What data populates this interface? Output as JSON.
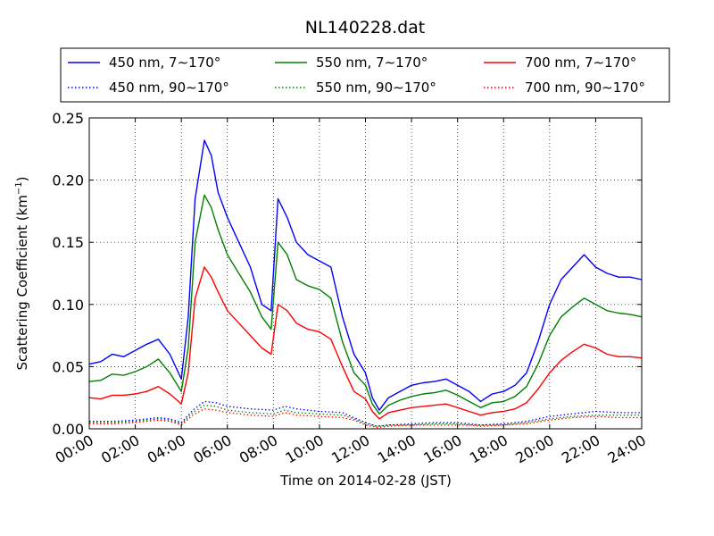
{
  "chart_data": {
    "type": "line",
    "title": "NL140228.dat",
    "xlabel": "Time on 2014-02-28 (JST)",
    "ylabel": "Scattering Coefficient (km",
    "ylabel_sup": "−1",
    "ylabel_close": ")",
    "xlim": [
      0,
      24
    ],
    "ylim": [
      0,
      0.25
    ],
    "grid": true,
    "legend_position": "top (above plot), 3 columns",
    "x_ticks": [
      0,
      2,
      4,
      6,
      8,
      10,
      12,
      14,
      16,
      18,
      20,
      22,
      24
    ],
    "x_tick_labels": [
      "00:00",
      "02:00",
      "04:00",
      "06:00",
      "08:00",
      "10:00",
      "12:00",
      "14:00",
      "16:00",
      "18:00",
      "20:00",
      "22:00",
      "24:00"
    ],
    "y_ticks": [
      0,
      0.05,
      0.1,
      0.15,
      0.2,
      0.25
    ],
    "y_tick_labels": [
      "0.00",
      "0.05",
      "0.10",
      "0.15",
      "0.20",
      "0.25"
    ],
    "series": [
      {
        "name": "450 nm, 7∼170°",
        "color": "#0000ff",
        "style": "solid",
        "x": [
          0,
          0.5,
          1,
          1.5,
          2,
          2.5,
          3,
          3.5,
          4,
          4.3,
          4.6,
          5,
          5.3,
          5.6,
          6,
          6.5,
          7,
          7.5,
          7.9,
          8.2,
          8.6,
          9,
          9.5,
          10,
          10.5,
          11,
          11.5,
          12,
          12.3,
          12.6,
          13,
          13.5,
          14,
          14.5,
          15,
          15.5,
          16,
          16.5,
          17,
          17.5,
          18,
          18.5,
          19,
          19.5,
          20,
          20.5,
          21,
          21.5,
          22,
          22.5,
          23,
          23.5,
          24
        ],
        "y": [
          0.052,
          0.054,
          0.06,
          0.058,
          0.063,
          0.068,
          0.072,
          0.06,
          0.04,
          0.09,
          0.185,
          0.232,
          0.22,
          0.19,
          0.17,
          0.15,
          0.13,
          0.1,
          0.095,
          0.185,
          0.17,
          0.15,
          0.14,
          0.135,
          0.13,
          0.09,
          0.06,
          0.045,
          0.025,
          0.015,
          0.025,
          0.03,
          0.035,
          0.037,
          0.038,
          0.04,
          0.035,
          0.03,
          0.022,
          0.028,
          0.03,
          0.035,
          0.045,
          0.07,
          0.1,
          0.12,
          0.13,
          0.14,
          0.13,
          0.125,
          0.122,
          0.122,
          0.12
        ]
      },
      {
        "name": "550 nm, 7∼170°",
        "color": "#008000",
        "style": "solid",
        "x": [
          0,
          0.5,
          1,
          1.5,
          2,
          2.5,
          3,
          3.5,
          4,
          4.3,
          4.6,
          5,
          5.3,
          5.6,
          6,
          6.5,
          7,
          7.5,
          7.9,
          8.2,
          8.6,
          9,
          9.5,
          10,
          10.5,
          11,
          11.5,
          12,
          12.3,
          12.6,
          13,
          13.5,
          14,
          14.5,
          15,
          15.5,
          16,
          16.5,
          17,
          17.5,
          18,
          18.5,
          19,
          19.5,
          20,
          20.5,
          21,
          21.5,
          22,
          22.5,
          23,
          23.5,
          24
        ],
        "y": [
          0.038,
          0.039,
          0.044,
          0.043,
          0.046,
          0.05,
          0.056,
          0.045,
          0.03,
          0.065,
          0.15,
          0.188,
          0.178,
          0.16,
          0.14,
          0.125,
          0.11,
          0.09,
          0.08,
          0.15,
          0.14,
          0.12,
          0.115,
          0.112,
          0.105,
          0.07,
          0.045,
          0.035,
          0.02,
          0.012,
          0.019,
          0.023,
          0.026,
          0.028,
          0.029,
          0.031,
          0.027,
          0.022,
          0.017,
          0.021,
          0.022,
          0.026,
          0.034,
          0.052,
          0.075,
          0.09,
          0.098,
          0.105,
          0.1,
          0.095,
          0.093,
          0.092,
          0.09
        ]
      },
      {
        "name": "700 nm, 7∼170°",
        "color": "#ff0000",
        "style": "solid",
        "x": [
          0,
          0.5,
          1,
          1.5,
          2,
          2.5,
          3,
          3.5,
          4,
          4.3,
          4.6,
          5,
          5.3,
          5.6,
          6,
          6.5,
          7,
          7.5,
          7.9,
          8.2,
          8.6,
          9,
          9.5,
          10,
          10.5,
          11,
          11.5,
          12,
          12.3,
          12.6,
          13,
          13.5,
          14,
          14.5,
          15,
          15.5,
          16,
          16.5,
          17,
          17.5,
          18,
          18.5,
          19,
          19.5,
          20,
          20.5,
          21,
          21.5,
          22,
          22.5,
          23,
          23.5,
          24
        ],
        "y": [
          0.025,
          0.024,
          0.027,
          0.027,
          0.028,
          0.03,
          0.034,
          0.028,
          0.02,
          0.045,
          0.105,
          0.13,
          0.122,
          0.11,
          0.095,
          0.085,
          0.075,
          0.065,
          0.06,
          0.1,
          0.095,
          0.085,
          0.08,
          0.078,
          0.072,
          0.05,
          0.03,
          0.024,
          0.014,
          0.008,
          0.013,
          0.015,
          0.017,
          0.018,
          0.019,
          0.02,
          0.017,
          0.014,
          0.011,
          0.013,
          0.014,
          0.016,
          0.021,
          0.032,
          0.045,
          0.055,
          0.062,
          0.068,
          0.065,
          0.06,
          0.058,
          0.058,
          0.057
        ]
      },
      {
        "name": "450 nm, 90∼170°",
        "color": "#0000ff",
        "style": "dotted",
        "x": [
          0,
          1,
          2,
          3,
          3.5,
          4,
          4.5,
          5,
          5.5,
          6,
          7,
          8,
          8.5,
          9,
          10,
          11,
          11.5,
          12,
          12.5,
          13,
          14,
          15,
          16,
          16.5,
          17,
          18,
          19,
          20,
          21,
          22,
          23,
          24
        ],
        "y": [
          0.006,
          0.006,
          0.007,
          0.009,
          0.008,
          0.005,
          0.015,
          0.022,
          0.021,
          0.018,
          0.016,
          0.015,
          0.018,
          0.016,
          0.014,
          0.013,
          0.009,
          0.005,
          0.002,
          0.003,
          0.004,
          0.005,
          0.005,
          0.004,
          0.003,
          0.004,
          0.006,
          0.01,
          0.012,
          0.014,
          0.013,
          0.013
        ]
      },
      {
        "name": "550 nm, 90∼170°",
        "color": "#008000",
        "style": "dotted",
        "x": [
          0,
          1,
          2,
          3,
          3.5,
          4,
          4.5,
          5,
          5.5,
          6,
          7,
          8,
          8.5,
          9,
          10,
          11,
          11.5,
          12,
          12.5,
          13,
          14,
          15,
          16,
          16.5,
          17,
          18,
          19,
          20,
          21,
          22,
          23,
          24
        ],
        "y": [
          0.005,
          0.005,
          0.006,
          0.008,
          0.007,
          0.004,
          0.013,
          0.019,
          0.018,
          0.015,
          0.013,
          0.012,
          0.015,
          0.013,
          0.012,
          0.011,
          0.008,
          0.004,
          0.002,
          0.003,
          0.003,
          0.004,
          0.004,
          0.003,
          0.003,
          0.003,
          0.005,
          0.008,
          0.01,
          0.011,
          0.011,
          0.011
        ]
      },
      {
        "name": "700 nm, 90∼170°",
        "color": "#ff0000",
        "style": "dotted",
        "x": [
          0,
          1,
          2,
          3,
          3.5,
          4,
          4.5,
          5,
          5.5,
          6,
          7,
          8,
          8.5,
          9,
          10,
          11,
          11.5,
          12,
          12.5,
          13,
          14,
          15,
          16,
          16.5,
          17,
          18,
          19,
          20,
          21,
          22,
          23,
          24
        ],
        "y": [
          0.004,
          0.004,
          0.005,
          0.007,
          0.006,
          0.003,
          0.011,
          0.016,
          0.015,
          0.013,
          0.011,
          0.01,
          0.013,
          0.011,
          0.01,
          0.009,
          0.007,
          0.003,
          0.001,
          0.002,
          0.003,
          0.003,
          0.003,
          0.003,
          0.002,
          0.003,
          0.004,
          0.007,
          0.009,
          0.01,
          0.009,
          0.009
        ]
      }
    ]
  }
}
